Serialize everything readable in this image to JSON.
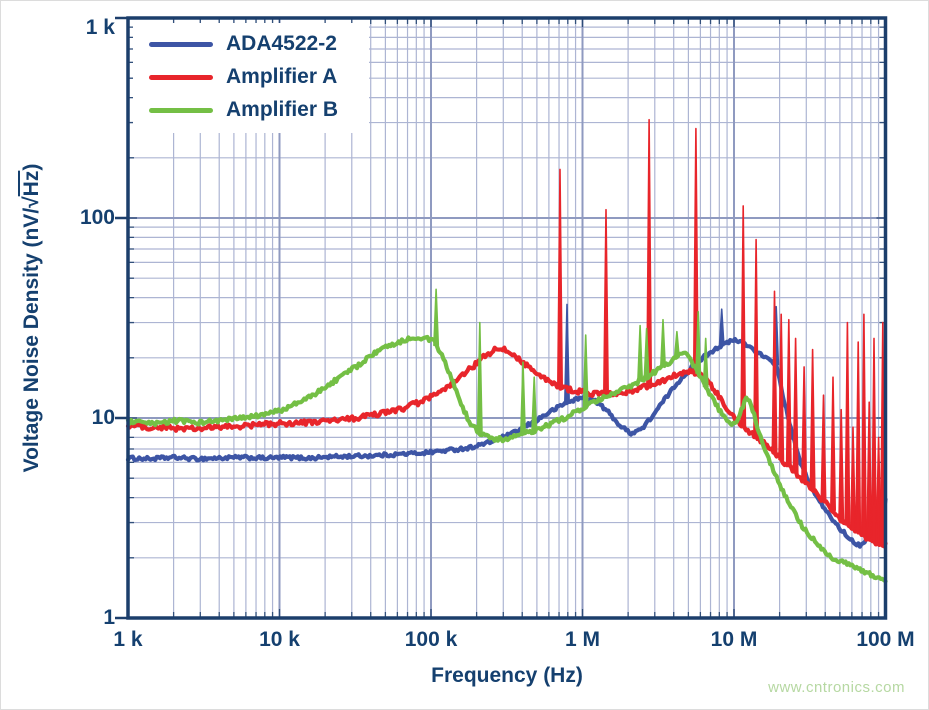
{
  "watermark": "www.cntronics.com",
  "colors": {
    "navy_text": "#15406F",
    "frame": "#1C3E6B",
    "grid_minor": "#ADB5D3",
    "grid_major": "#8F9AC0",
    "series_blue": "#3D55A5",
    "series_red": "#E8252B",
    "series_green": "#74BF45",
    "watermark_green": "#B6D8A2",
    "background": "#FFFFFF"
  },
  "chart_data": {
    "type": "line",
    "title": "",
    "xlabel": "Frequency (Hz)",
    "ylabel": "Voltage Noise Density (nV/√Hz)",
    "ylabel_parts": {
      "pre": "Voltage Noise Density (nV/√",
      "overline": "Hz",
      "post": ")"
    },
    "xscale": "log",
    "yscale": "log",
    "xlim": [
      1000,
      100000000
    ],
    "ylim": [
      1,
      1000
    ],
    "grid": "log major+minor, on",
    "legend_position": "top-left",
    "x_ticks": [
      {
        "value": 1000,
        "label": "1 k"
      },
      {
        "value": 10000,
        "label": "10 k"
      },
      {
        "value": 100000,
        "label": "100 k"
      },
      {
        "value": 1000000,
        "label": "1 M"
      },
      {
        "value": 10000000,
        "label": "10 M"
      },
      {
        "value": 100000000,
        "label": "100 M"
      }
    ],
    "y_ticks": [
      {
        "value": 1000,
        "label": "1 k"
      },
      {
        "value": 100,
        "label": "100"
      },
      {
        "value": 10,
        "label": "10"
      },
      {
        "value": 1,
        "label": "1"
      }
    ],
    "series": [
      {
        "name": "ADA4522-2",
        "color": "#3D55A5",
        "noise": 0.009,
        "points": [
          [
            1000,
            6.3
          ],
          [
            1400,
            6.25
          ],
          [
            2000,
            6.35
          ],
          [
            2800,
            6.25
          ],
          [
            4000,
            6.3
          ],
          [
            5600,
            6.35
          ],
          [
            8000,
            6.3
          ],
          [
            11000,
            6.35
          ],
          [
            16000,
            6.3
          ],
          [
            22000,
            6.4
          ],
          [
            32000,
            6.45
          ],
          [
            45000,
            6.5
          ],
          [
            63000,
            6.6
          ],
          [
            90000,
            6.7
          ],
          [
            130000,
            6.9
          ],
          [
            180000,
            7.1
          ],
          [
            250000,
            7.6
          ],
          [
            350000,
            8.4
          ],
          [
            480000,
            9.6
          ],
          [
            620000,
            10.8
          ],
          [
            760000,
            11.8
          ],
          [
            900000,
            12.4
          ],
          [
            1050000,
            12.7
          ],
          [
            1250000,
            12.0
          ],
          [
            1500000,
            10.6
          ],
          [
            1800000,
            9.0
          ],
          [
            2100000,
            8.4
          ],
          [
            2500000,
            8.9
          ],
          [
            3000000,
            10.6
          ],
          [
            3600000,
            12.8
          ],
          [
            4300000,
            15.2
          ],
          [
            5200000,
            17.8
          ],
          [
            6200000,
            20.0
          ],
          [
            7400000,
            22.0
          ],
          [
            8800000,
            23.6
          ],
          [
            10000000,
            24.5
          ],
          [
            11500000,
            23.8
          ],
          [
            13500000,
            22.0
          ],
          [
            16000000,
            20.0
          ],
          [
            19000000,
            18.5
          ],
          [
            21000000,
            13.0
          ],
          [
            24000000,
            8.5
          ],
          [
            27000000,
            6.2
          ],
          [
            31000000,
            4.8
          ],
          [
            36000000,
            3.9
          ],
          [
            42000000,
            3.3
          ],
          [
            50000000,
            2.8
          ],
          [
            58000000,
            2.5
          ],
          [
            67000000,
            2.3
          ],
          [
            76000000,
            2.5
          ],
          [
            83000000,
            2.9
          ],
          [
            88000000,
            2.3
          ],
          [
            93000000,
            2.6
          ],
          [
            100000000,
            3.9
          ]
        ],
        "spikes": [
          [
            790000,
            37
          ],
          [
            8300000,
            35
          ],
          [
            19000000,
            36
          ]
        ]
      },
      {
        "name": "Amplifier A",
        "color": "#E8252B",
        "noise": 0.013,
        "points": [
          [
            1000,
            9.2
          ],
          [
            1400,
            9.0
          ],
          [
            2000,
            8.9
          ],
          [
            2800,
            8.8
          ],
          [
            4000,
            9.0
          ],
          [
            5600,
            9.1
          ],
          [
            8000,
            9.3
          ],
          [
            11000,
            9.4
          ],
          [
            16000,
            9.5
          ],
          [
            22000,
            9.7
          ],
          [
            30000,
            9.9
          ],
          [
            40000,
            10.3
          ],
          [
            52000,
            10.7
          ],
          [
            66000,
            11.2
          ],
          [
            82000,
            11.9
          ],
          [
            100000,
            12.7
          ],
          [
            125000,
            13.9
          ],
          [
            150000,
            15.5
          ],
          [
            180000,
            17.5
          ],
          [
            220000,
            20.0
          ],
          [
            260000,
            21.8
          ],
          [
            300000,
            22.0
          ],
          [
            350000,
            20.8
          ],
          [
            420000,
            18.6
          ],
          [
            500000,
            16.6
          ],
          [
            600000,
            15.2
          ],
          [
            710000,
            14.3
          ],
          [
            850000,
            13.8
          ],
          [
            1000000,
            13.5
          ],
          [
            1200000,
            13.2
          ],
          [
            1450000,
            13.1
          ],
          [
            1750000,
            13.3
          ],
          [
            2100000,
            13.7
          ],
          [
            2500000,
            14.2
          ],
          [
            3000000,
            14.9
          ],
          [
            3600000,
            15.7
          ],
          [
            4300000,
            16.6
          ],
          [
            5000000,
            17.0
          ],
          [
            5800000,
            16.6
          ],
          [
            6800000,
            15.0
          ],
          [
            8000000,
            12.8
          ],
          [
            9300000,
            10.8
          ],
          [
            11000000,
            9.4
          ],
          [
            13000000,
            8.4
          ],
          [
            15500000,
            7.6
          ],
          [
            18000000,
            6.8
          ],
          [
            21000000,
            6.1
          ],
          [
            25000000,
            5.4
          ],
          [
            30000000,
            4.7
          ],
          [
            36000000,
            4.1
          ],
          [
            43000000,
            3.6
          ],
          [
            51000000,
            3.1
          ],
          [
            60000000,
            2.8
          ],
          [
            70000000,
            2.6
          ],
          [
            82000000,
            2.4
          ],
          [
            100000000,
            2.3
          ]
        ],
        "spikes": [
          [
            710000,
            175
          ],
          [
            1430000,
            110
          ],
          [
            2750000,
            310
          ],
          [
            5600000,
            280
          ],
          [
            11500000,
            115
          ],
          [
            14000000,
            78
          ],
          [
            18500000,
            43
          ],
          [
            20500000,
            33
          ],
          [
            23000000,
            31
          ],
          [
            25500000,
            25
          ],
          [
            29000000,
            18
          ],
          [
            33000000,
            22
          ],
          [
            39000000,
            13
          ],
          [
            45000000,
            16
          ],
          [
            51000000,
            11
          ],
          [
            56000000,
            30
          ],
          [
            61000000,
            9
          ],
          [
            66000000,
            24
          ],
          [
            72000000,
            33
          ],
          [
            78000000,
            12
          ],
          [
            84000000,
            25
          ],
          [
            90000000,
            8
          ],
          [
            96000000,
            30
          ]
        ]
      },
      {
        "name": "Amplifier B",
        "color": "#74BF45",
        "noise": 0.011,
        "points": [
          [
            1000,
            9.6
          ],
          [
            1500,
            9.3
          ],
          [
            2000,
            9.7
          ],
          [
            3000,
            9.5
          ],
          [
            4000,
            9.7
          ],
          [
            5000,
            9.9
          ],
          [
            6500,
            10.1
          ],
          [
            8000,
            10.4
          ],
          [
            10000,
            10.9
          ],
          [
            13000,
            11.8
          ],
          [
            16000,
            12.8
          ],
          [
            20000,
            14.2
          ],
          [
            25000,
            16.0
          ],
          [
            32000,
            18.0
          ],
          [
            40000,
            20.5
          ],
          [
            50000,
            22.5
          ],
          [
            63000,
            24.2
          ],
          [
            75000,
            25.2
          ],
          [
            90000,
            25.3
          ],
          [
            105000,
            24.0
          ],
          [
            120000,
            20.0
          ],
          [
            140000,
            15.0
          ],
          [
            160000,
            11.5
          ],
          [
            180000,
            9.5
          ],
          [
            210000,
            8.4
          ],
          [
            250000,
            7.9
          ],
          [
            300000,
            7.8
          ],
          [
            360000,
            8.1
          ],
          [
            430000,
            8.4
          ],
          [
            520000,
            8.8
          ],
          [
            630000,
            9.4
          ],
          [
            760000,
            10.0
          ],
          [
            900000,
            10.7
          ],
          [
            1100000,
            11.6
          ],
          [
            1350000,
            12.5
          ],
          [
            1650000,
            13.3
          ],
          [
            2000000,
            14.3
          ],
          [
            2500000,
            15.6
          ],
          [
            3000000,
            17.0
          ],
          [
            3600000,
            18.6
          ],
          [
            4300000,
            20.5
          ],
          [
            4800000,
            20.8
          ],
          [
            5300000,
            19.0
          ],
          [
            6000000,
            16.0
          ],
          [
            7000000,
            13.0
          ],
          [
            8000000,
            11.0
          ],
          [
            9000000,
            9.6
          ],
          [
            10000000,
            9.2
          ],
          [
            11000000,
            10.5
          ],
          [
            12000000,
            12.8
          ],
          [
            13000000,
            11.5
          ],
          [
            15000000,
            8.0
          ],
          [
            17000000,
            6.2
          ],
          [
            20000000,
            4.6
          ],
          [
            24000000,
            3.6
          ],
          [
            28000000,
            2.9
          ],
          [
            33000000,
            2.5
          ],
          [
            40000000,
            2.1
          ],
          [
            48000000,
            1.95
          ],
          [
            57000000,
            1.85
          ],
          [
            68000000,
            1.75
          ],
          [
            80000000,
            1.65
          ],
          [
            100000000,
            1.55
          ]
        ],
        "spikes": [
          [
            108000,
            44
          ],
          [
            210000,
            30
          ],
          [
            405000,
            19
          ],
          [
            480000,
            16
          ],
          [
            1050000,
            26
          ],
          [
            2400000,
            29
          ],
          [
            2650000,
            28
          ],
          [
            3400000,
            31
          ],
          [
            4200000,
            27
          ],
          [
            5800000,
            34
          ],
          [
            6500000,
            25
          ]
        ]
      }
    ]
  }
}
